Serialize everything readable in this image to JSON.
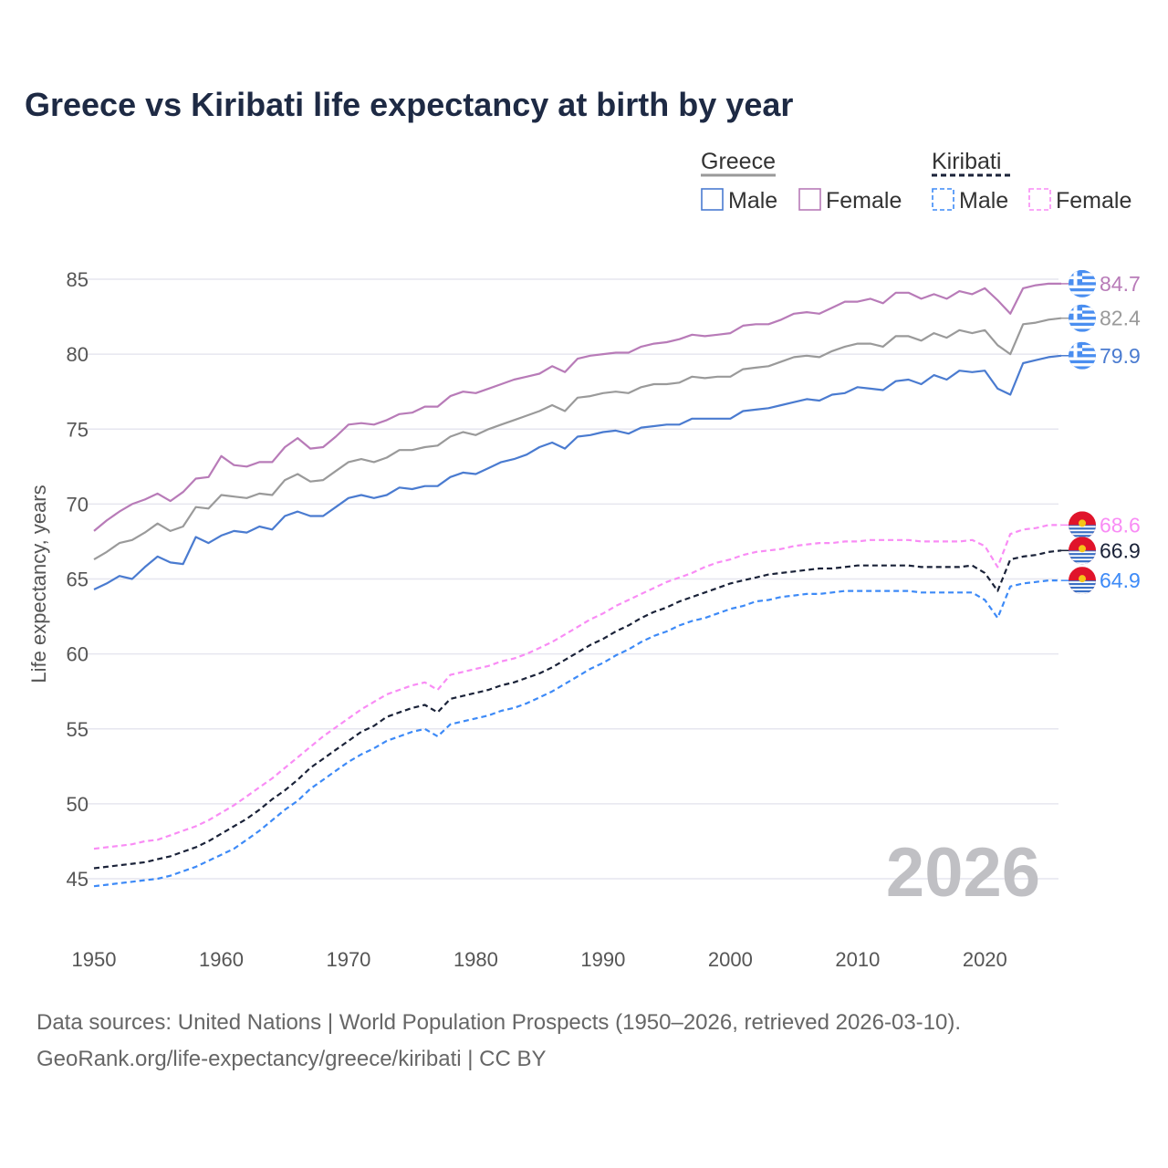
{
  "title": "Greece vs Kiribati life expectancy at birth by year",
  "source_line1": "Data sources: United Nations | World Population Prospects (1950–2026, retrieved 2026-03-10).",
  "source_line2": "GeoRank.org/life-expectancy/greece/kiribati | CC BY",
  "chart_data": {
    "type": "line",
    "title": "Greece vs Kiribati life expectancy at birth by year",
    "xlabel": "",
    "ylabel": "Life expectancy, years",
    "xlim": [
      1950,
      2026
    ],
    "ylim": [
      45,
      85
    ],
    "x_ticks": [
      "1950",
      "1960",
      "1970",
      "1980",
      "1990",
      "2000",
      "2010",
      "2020"
    ],
    "y_ticks": [
      "45",
      "50",
      "55",
      "60",
      "65",
      "70",
      "75",
      "80",
      "85"
    ],
    "grid": true,
    "watermark_year": "2026",
    "x_start": 1950,
    "legend": {
      "placement": "top-right",
      "groups": [
        {
          "name": "Greece",
          "style": "solid",
          "color": "#999999",
          "items": [
            "Male",
            "Female"
          ]
        },
        {
          "name": "Kiribati",
          "style": "dashed",
          "color": "#1a2238",
          "items": [
            "Male",
            "Female"
          ]
        }
      ]
    },
    "series": [
      {
        "name": "Greece Female",
        "country": "Greece",
        "dash": false,
        "color": "#b87bb8",
        "end_label": "84.7",
        "flag": "greece",
        "values": [
          68.2,
          68.9,
          69.5,
          70.0,
          70.3,
          70.7,
          70.2,
          70.8,
          71.7,
          71.8,
          73.2,
          72.6,
          72.5,
          72.8,
          72.8,
          73.8,
          74.4,
          73.7,
          73.8,
          74.5,
          75.3,
          75.4,
          75.3,
          75.6,
          76.0,
          76.1,
          76.5,
          76.5,
          77.2,
          77.5,
          77.4,
          77.7,
          78.0,
          78.3,
          78.5,
          78.7,
          79.2,
          78.8,
          79.7,
          79.9,
          80.0,
          80.1,
          80.1,
          80.5,
          80.7,
          80.8,
          81.0,
          81.3,
          81.2,
          81.3,
          81.4,
          81.9,
          82.0,
          82.0,
          82.3,
          82.7,
          82.8,
          82.7,
          83.1,
          83.5,
          83.5,
          83.7,
          83.4,
          84.1,
          84.1,
          83.7,
          84.0,
          83.7,
          84.2,
          84.0,
          84.4,
          83.6,
          82.7,
          84.4,
          84.6,
          84.7,
          84.7
        ]
      },
      {
        "name": "Greece Both",
        "country": "Greece",
        "dash": false,
        "color": "#9a9a9a",
        "end_label": "82.4",
        "flag": "greece",
        "values": [
          66.3,
          66.8,
          67.4,
          67.6,
          68.1,
          68.7,
          68.2,
          68.5,
          69.8,
          69.7,
          70.6,
          70.5,
          70.4,
          70.7,
          70.6,
          71.6,
          72.0,
          71.5,
          71.6,
          72.2,
          72.8,
          73.0,
          72.8,
          73.1,
          73.6,
          73.6,
          73.8,
          73.9,
          74.5,
          74.8,
          74.6,
          75.0,
          75.3,
          75.6,
          75.9,
          76.2,
          76.6,
          76.2,
          77.1,
          77.2,
          77.4,
          77.5,
          77.4,
          77.8,
          78.0,
          78.0,
          78.1,
          78.5,
          78.4,
          78.5,
          78.5,
          79.0,
          79.1,
          79.2,
          79.5,
          79.8,
          79.9,
          79.8,
          80.2,
          80.5,
          80.7,
          80.7,
          80.5,
          81.2,
          81.2,
          80.9,
          81.4,
          81.1,
          81.6,
          81.4,
          81.6,
          80.6,
          80.0,
          82.0,
          82.1,
          82.3,
          82.4
        ]
      },
      {
        "name": "Greece Male",
        "country": "Greece",
        "dash": false,
        "color": "#4a7bd0",
        "end_label": "79.9",
        "flag": "greece",
        "values": [
          64.3,
          64.7,
          65.2,
          65.0,
          65.8,
          66.5,
          66.1,
          66.0,
          67.8,
          67.4,
          67.9,
          68.2,
          68.1,
          68.5,
          68.3,
          69.2,
          69.5,
          69.2,
          69.2,
          69.8,
          70.4,
          70.6,
          70.4,
          70.6,
          71.1,
          71.0,
          71.2,
          71.2,
          71.8,
          72.1,
          72.0,
          72.4,
          72.8,
          73.0,
          73.3,
          73.8,
          74.1,
          73.7,
          74.5,
          74.6,
          74.8,
          74.9,
          74.7,
          75.1,
          75.2,
          75.3,
          75.3,
          75.7,
          75.7,
          75.7,
          75.7,
          76.2,
          76.3,
          76.4,
          76.6,
          76.8,
          77.0,
          76.9,
          77.3,
          77.4,
          77.8,
          77.7,
          77.6,
          78.2,
          78.3,
          78.0,
          78.6,
          78.3,
          78.9,
          78.8,
          78.9,
          77.7,
          77.3,
          79.4,
          79.6,
          79.8,
          79.9
        ]
      },
      {
        "name": "Kiribati Female",
        "country": "Kiribati",
        "dash": true,
        "color": "#f98cf5",
        "end_label": "68.6",
        "flag": "kiribati",
        "values": [
          47.0,
          47.1,
          47.2,
          47.3,
          47.5,
          47.6,
          47.9,
          48.2,
          48.5,
          48.9,
          49.4,
          49.9,
          50.5,
          51.1,
          51.7,
          52.4,
          53.1,
          53.8,
          54.5,
          55.1,
          55.7,
          56.3,
          56.8,
          57.3,
          57.6,
          57.9,
          58.1,
          57.6,
          58.6,
          58.8,
          59.0,
          59.2,
          59.5,
          59.7,
          60.0,
          60.4,
          60.8,
          61.3,
          61.8,
          62.3,
          62.7,
          63.2,
          63.6,
          64.0,
          64.4,
          64.8,
          65.1,
          65.4,
          65.8,
          66.1,
          66.3,
          66.6,
          66.8,
          66.9,
          67.0,
          67.2,
          67.3,
          67.4,
          67.4,
          67.5,
          67.5,
          67.6,
          67.6,
          67.6,
          67.6,
          67.5,
          67.5,
          67.5,
          67.5,
          67.6,
          67.2,
          65.8,
          68.0,
          68.3,
          68.4,
          68.6,
          68.6
        ]
      },
      {
        "name": "Kiribati Both",
        "country": "Kiribati",
        "dash": true,
        "color": "#1a2238",
        "end_label": "66.9",
        "flag": "kiribati",
        "values": [
          45.7,
          45.8,
          45.9,
          46.0,
          46.1,
          46.3,
          46.5,
          46.8,
          47.1,
          47.5,
          48.0,
          48.5,
          49.0,
          49.6,
          50.3,
          50.9,
          51.6,
          52.4,
          53.0,
          53.6,
          54.2,
          54.8,
          55.2,
          55.8,
          56.1,
          56.4,
          56.6,
          56.1,
          57.0,
          57.2,
          57.4,
          57.6,
          57.9,
          58.1,
          58.4,
          58.7,
          59.1,
          59.6,
          60.1,
          60.6,
          61.0,
          61.5,
          61.9,
          62.4,
          62.8,
          63.1,
          63.5,
          63.8,
          64.1,
          64.4,
          64.7,
          64.9,
          65.1,
          65.3,
          65.4,
          65.5,
          65.6,
          65.7,
          65.7,
          65.8,
          65.9,
          65.9,
          65.9,
          65.9,
          65.9,
          65.8,
          65.8,
          65.8,
          65.8,
          65.9,
          65.4,
          64.2,
          66.3,
          66.5,
          66.6,
          66.8,
          66.9
        ]
      },
      {
        "name": "Kiribati Male",
        "country": "Kiribati",
        "dash": true,
        "color": "#3d8af7",
        "end_label": "64.9",
        "flag": "kiribati",
        "values": [
          44.5,
          44.6,
          44.7,
          44.8,
          44.9,
          45.0,
          45.2,
          45.5,
          45.8,
          46.2,
          46.6,
          47.0,
          47.6,
          48.2,
          48.9,
          49.6,
          50.2,
          51.0,
          51.6,
          52.2,
          52.8,
          53.3,
          53.7,
          54.2,
          54.5,
          54.8,
          55.0,
          54.5,
          55.3,
          55.5,
          55.7,
          55.9,
          56.2,
          56.4,
          56.7,
          57.1,
          57.5,
          58.0,
          58.5,
          59.0,
          59.4,
          59.9,
          60.3,
          60.8,
          61.2,
          61.5,
          61.9,
          62.2,
          62.4,
          62.7,
          63.0,
          63.2,
          63.5,
          63.6,
          63.8,
          63.9,
          64.0,
          64.0,
          64.1,
          64.2,
          64.2,
          64.2,
          64.2,
          64.2,
          64.2,
          64.1,
          64.1,
          64.1,
          64.1,
          64.1,
          63.6,
          62.4,
          64.5,
          64.7,
          64.8,
          64.9,
          64.9
        ]
      }
    ]
  }
}
